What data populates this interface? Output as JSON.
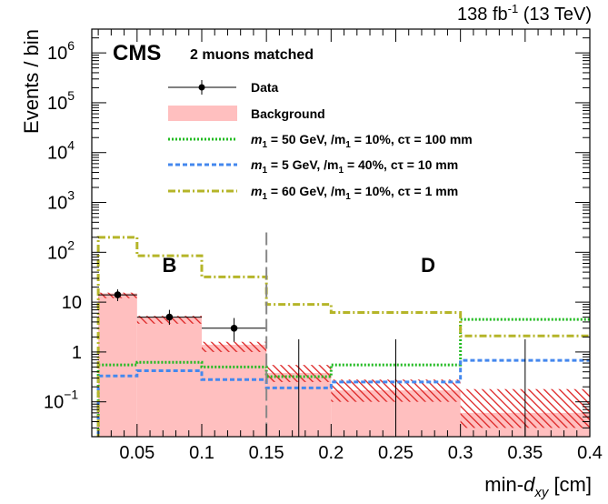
{
  "chart_data": {
    "type": "histogram",
    "lumi_label": "138 fb",
    "lumi_sup": "-1",
    "lumi_energy": " (13 TeV)",
    "cms_label": "CMS",
    "selection_label": "2 muons matched",
    "xlabel_main": "min-",
    "xlabel_d": "d",
    "xlabel_sub": "xy",
    "xlabel_unit": " [cm]",
    "ylabel": "Events / bin",
    "xlim": [
      0.015,
      0.4
    ],
    "ylim": [
      0.02,
      3000000
    ],
    "y_log": true,
    "x_ticks": [
      {
        "value": 0.05,
        "label": "0.05"
      },
      {
        "value": 0.1,
        "label": "0.1"
      },
      {
        "value": 0.15,
        "label": "0.15"
      },
      {
        "value": 0.2,
        "label": "0.2"
      },
      {
        "value": 0.25,
        "label": "0.25"
      },
      {
        "value": 0.3,
        "label": "0.3"
      },
      {
        "value": 0.35,
        "label": "0.35"
      },
      {
        "value": 0.4,
        "label": "0.4"
      }
    ],
    "y_ticks": [
      {
        "value": 0.1,
        "base": "10",
        "exp": "−1"
      },
      {
        "value": 1,
        "base": "1",
        "exp": ""
      },
      {
        "value": 10,
        "base": "10",
        "exp": ""
      },
      {
        "value": 100,
        "base": "10",
        "exp": "2"
      },
      {
        "value": 1000,
        "base": "10",
        "exp": "3"
      },
      {
        "value": 10000,
        "base": "10",
        "exp": "4"
      },
      {
        "value": 100000,
        "base": "10",
        "exp": "5"
      },
      {
        "value": 1000000,
        "base": "10",
        "exp": "6"
      }
    ],
    "bin_edges": [
      0.02,
      0.05,
      0.1,
      0.15,
      0.2,
      0.3,
      0.4
    ],
    "region_boundary": 0.15,
    "regions": [
      {
        "label": "B",
        "x": 0.075,
        "y": 40
      },
      {
        "label": "D",
        "x": 0.275,
        "y": 40
      }
    ],
    "background": {
      "name": "Background",
      "color": "#ffbfbf",
      "unc_color": "#dd2222",
      "values": [
        15,
        5,
        1.4,
        0.38,
        0.17,
        0.06
      ],
      "unc_low": [
        12,
        3.7,
        1.0,
        0.25,
        0.1,
        0.03
      ],
      "unc_high": [
        15.5,
        5.3,
        1.6,
        0.55,
        0.28,
        0.18
      ]
    },
    "data": {
      "name": "Data",
      "points": [
        {
          "x": 0.035,
          "y": 14,
          "ylo": 10.5,
          "yhi": 18,
          "xlo": 0.02,
          "xhi": 0.05
        },
        {
          "x": 0.075,
          "y": 5,
          "ylo": 3.5,
          "yhi": 7,
          "xlo": 0.05,
          "xhi": 0.1
        },
        {
          "x": 0.125,
          "y": 3,
          "ylo": 1.6,
          "yhi": 4.8,
          "xlo": 0.1,
          "xhi": 0.15
        }
      ],
      "empty_bins": [
        {
          "x": 0.175,
          "yhi": 1.8
        },
        {
          "x": 0.25,
          "yhi": 1.8
        },
        {
          "x": 0.35,
          "yhi": 1.8
        }
      ]
    },
    "signals": [
      {
        "label_m": "m",
        "label_sub": "1",
        "label_rest": " = 50 GeV,    /m",
        "label_sub2": "1",
        "label_tail": " = 10%, cτ = 100 mm",
        "color": "#22bb22",
        "dash": "2,2",
        "values": [
          0.55,
          0.62,
          0.5,
          0.32,
          0.55,
          4.5
        ]
      },
      {
        "label_m": "m",
        "label_sub": "1",
        "label_rest": " = 5 GeV,    /m",
        "label_sub2": "1",
        "label_tail": " = 40%, cτ = 10 mm",
        "color": "#4488ee",
        "dash": "5,3",
        "values": [
          0.33,
          0.42,
          0.28,
          0.19,
          0.25,
          0.68
        ]
      },
      {
        "label_m": "m",
        "label_sub": "1",
        "label_rest": " = 60 GeV,    /m",
        "label_sub2": "1",
        "label_tail": " = 10%, cτ = 1 mm",
        "color": "#b5b529",
        "dash": "8,3,2,3",
        "values": [
          200,
          85,
          32,
          9,
          6.2,
          2.1
        ]
      }
    ],
    "legend_position": "top-center",
    "grid": false
  }
}
